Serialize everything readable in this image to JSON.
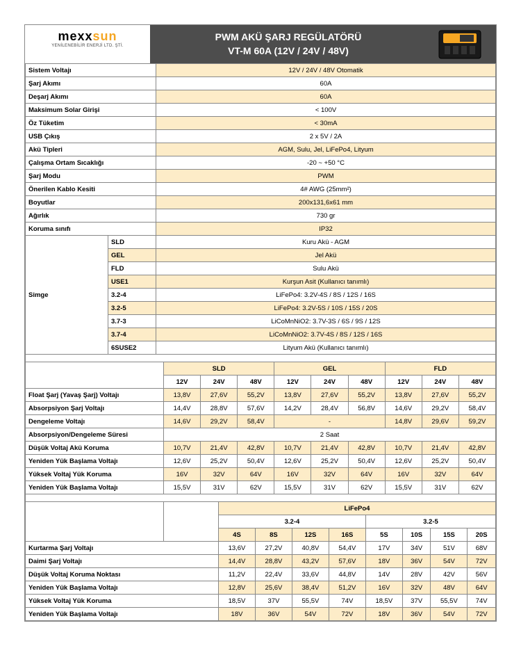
{
  "header": {
    "logo_mexx": "mexx",
    "logo_sun": "sun",
    "logo_sub": "YENİLENEBİLİR ENERJİ LTD. ŞTİ.",
    "title1": "PWM AKÜ ŞARJ REGÜLATÖRÜ",
    "title2": "VT-M 60A (12V / 24V / 48V)"
  },
  "specs": [
    {
      "label": "Sistem Voltajı",
      "value": "12V / 24V / 48V Otomatik",
      "alt": true
    },
    {
      "label": "Şarj Akımı",
      "value": "60A",
      "alt": false
    },
    {
      "label": "Deşarj Akımı",
      "value": "60A",
      "alt": true
    },
    {
      "label": "Maksimum Solar Girişi",
      "value": "< 100V",
      "alt": false
    },
    {
      "label": "Öz Tüketim",
      "value": "< 30mA",
      "alt": true
    },
    {
      "label": "USB Çıkış",
      "value": "2 x 5V / 2A",
      "alt": false
    },
    {
      "label": "Akü Tipleri",
      "value": "AGM, Sulu, Jel, LiFePo4, Lityum",
      "alt": true
    },
    {
      "label": "Çalışma Ortam Sıcaklığı",
      "value": "-20 ~ +50 °C",
      "alt": false
    },
    {
      "label": "Şarj Modu",
      "value": "PWM",
      "alt": true
    },
    {
      "label": "Önerilen Kablo Kesiti",
      "value": "4# AWG (25mm²)",
      "alt": false
    },
    {
      "label": "Boyutlar",
      "value": "200x131,6x61 mm",
      "alt": true
    },
    {
      "label": "Ağırlık",
      "value": "730 gr",
      "alt": false
    },
    {
      "label": "Koruma sınıfı",
      "value": "IP32",
      "alt": true
    }
  ],
  "simge": {
    "label": "Simge",
    "rows": [
      {
        "code": "SLD",
        "value": "Kuru Akü - AGM",
        "alt": false
      },
      {
        "code": "GEL",
        "value": "Jel Akü",
        "alt": true
      },
      {
        "code": "FLD",
        "value": "Sulu Akü",
        "alt": false
      },
      {
        "code": "USE1",
        "value": "Kurşun Asit (Kullanıcı tanımlı)",
        "alt": true
      },
      {
        "code": "3.2-4",
        "value": "LiFePo4: 3.2V-4S / 8S / 12S / 16S",
        "alt": false
      },
      {
        "code": "3.2-5",
        "value": "LiFePo4: 3.2V-5S / 10S / 15S / 20S",
        "alt": true
      },
      {
        "code": "3.7-3",
        "value": "LiCoMnNiO2: 3.7V-3S / 6S / 9S / 12S",
        "alt": false
      },
      {
        "code": "3.7-4",
        "value": "LiCoMnNiO2: 3.7V-4S / 8S / 12S / 16S",
        "alt": true
      },
      {
        "code": "6SUSE2",
        "value": "Lityum Akü (Kullanıcı tanımlı)",
        "alt": false
      }
    ]
  },
  "table2": {
    "groups": [
      "SLD",
      "GEL",
      "FLD"
    ],
    "cols": [
      "12V",
      "24V",
      "48V",
      "12V",
      "24V",
      "48V",
      "12V",
      "24V",
      "48V"
    ],
    "rows": [
      {
        "label": "Float Şarj (Yavaş Şarj) Voltajı",
        "v": [
          "13,8V",
          "27,6V",
          "55,2V",
          "13,8V",
          "27,6V",
          "55,2V",
          "13,8V",
          "27,6V",
          "55,2V"
        ],
        "alt": true
      },
      {
        "label": "Absorpsiyon Şarj Voltajı",
        "v": [
          "14,4V",
          "28,8V",
          "57,6V",
          "14,2V",
          "28,4V",
          "56,8V",
          "14,6V",
          "29,2V",
          "58,4V"
        ],
        "alt": false
      },
      {
        "label": "Dengeleme Voltajı",
        "v": [
          "14,6V",
          "29,2V",
          "58,4V",
          "-",
          "-",
          "-",
          "14,8V",
          "29,6V",
          "59,2V"
        ],
        "alt": true,
        "merge": 3
      },
      {
        "label": "Absorpsiyon/Dengeleme Süresi",
        "span": "2 Saat",
        "alt": false
      },
      {
        "label": "Düşük Voltaj Akü Koruma",
        "v": [
          "10,7V",
          "21,4V",
          "42,8V",
          "10,7V",
          "21,4V",
          "42,8V",
          "10,7V",
          "21,4V",
          "42,8V"
        ],
        "alt": true
      },
      {
        "label": "Yeniden Yük Başlama Voltajı",
        "v": [
          "12,6V",
          "25,2V",
          "50,4V",
          "12,6V",
          "25,2V",
          "50,4V",
          "12,6V",
          "25,2V",
          "50,4V"
        ],
        "alt": false
      },
      {
        "label": "Yüksek Voltaj Yük Koruma",
        "v": [
          "16V",
          "32V",
          "64V",
          "16V",
          "32V",
          "64V",
          "16V",
          "32V",
          "64V"
        ],
        "alt": true
      },
      {
        "label": "Yeniden Yük Başlama Voltajı",
        "v": [
          "15,5V",
          "31V",
          "62V",
          "15,5V",
          "31V",
          "62V",
          "15,5V",
          "31V",
          "62V"
        ],
        "alt": false
      }
    ]
  },
  "table3": {
    "top": "LiFePo4",
    "groups": [
      "3.2-4",
      "3.2-5"
    ],
    "cols": [
      "4S",
      "8S",
      "12S",
      "16S",
      "5S",
      "10S",
      "15S",
      "20S"
    ],
    "rows": [
      {
        "label": "Kurtarma Şarj Voltajı",
        "v": [
          "13,6V",
          "27,2V",
          "40,8V",
          "54,4V",
          "17V",
          "34V",
          "51V",
          "68V"
        ],
        "alt": false
      },
      {
        "label": "Daimi Şarj Voltajı",
        "v": [
          "14,4V",
          "28,8V",
          "43,2V",
          "57,6V",
          "18V",
          "36V",
          "54V",
          "72V"
        ],
        "alt": true
      },
      {
        "label": "Düşük Voltaj Koruma Noktası",
        "v": [
          "11,2V",
          "22,4V",
          "33,6V",
          "44,8V",
          "14V",
          "28V",
          "42V",
          "56V"
        ],
        "alt": false
      },
      {
        "label": "Yeniden Yük Başlama Voltajı",
        "v": [
          "12,8V",
          "25,6V",
          "38,4V",
          "51,2V",
          "16V",
          "32V",
          "48V",
          "64V"
        ],
        "alt": true
      },
      {
        "label": "Yüksek Voltaj Yük Koruma",
        "v": [
          "18,5V",
          "37V",
          "55,5V",
          "74V",
          "18,5V",
          "37V",
          "55,5V",
          "74V"
        ],
        "alt": false
      },
      {
        "label": "Yeniden Yük Başlama Voltajı",
        "v": [
          "18V",
          "36V",
          "54V",
          "72V",
          "18V",
          "36V",
          "54V",
          "72V"
        ],
        "alt": true
      }
    ]
  }
}
